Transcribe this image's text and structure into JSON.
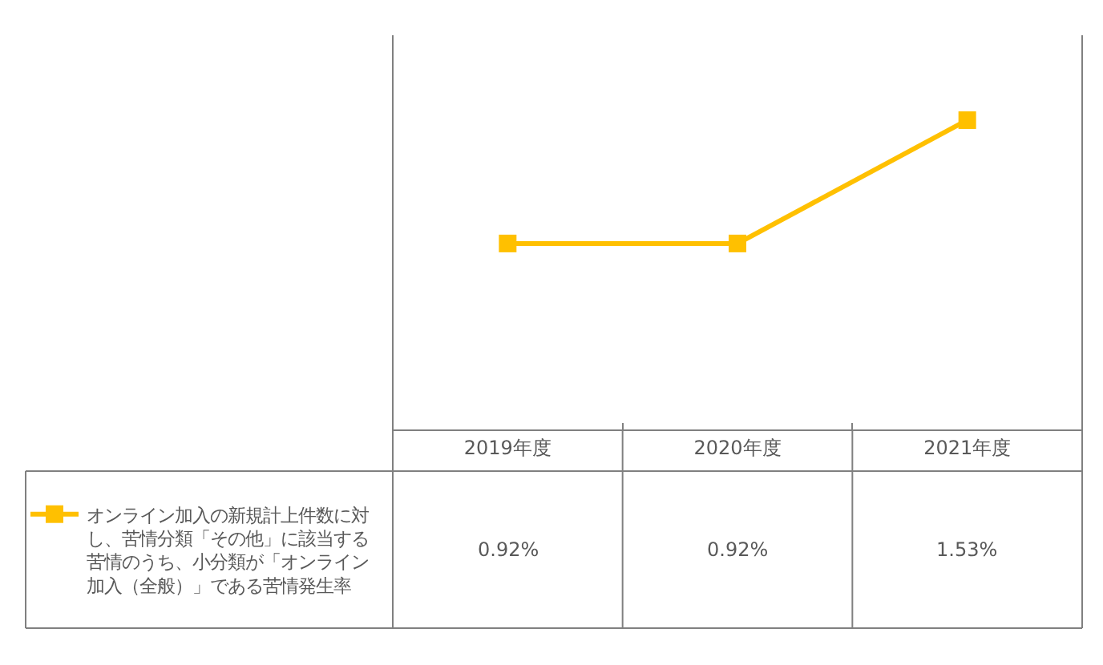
{
  "chart_data": {
    "type": "line",
    "categories": [
      "2019年度",
      "2020年度",
      "2021年度"
    ],
    "series": [
      {
        "name": "オンライン加入の新規計上件数に対し、苦情分類「その他」に該当する苦情のうち、小分類が「オンライン加入（全般）」である苦情発生率",
        "color": "#ffc000",
        "values": [
          0.92,
          0.92,
          1.53
        ],
        "value_labels": [
          "0.92%",
          "0.92%",
          "1.53%"
        ]
      }
    ],
    "ylim": [
      0,
      1.95
    ],
    "marker": "square",
    "line_style": "solid",
    "legend": "bottom left",
    "tick_labels": "x"
  }
}
